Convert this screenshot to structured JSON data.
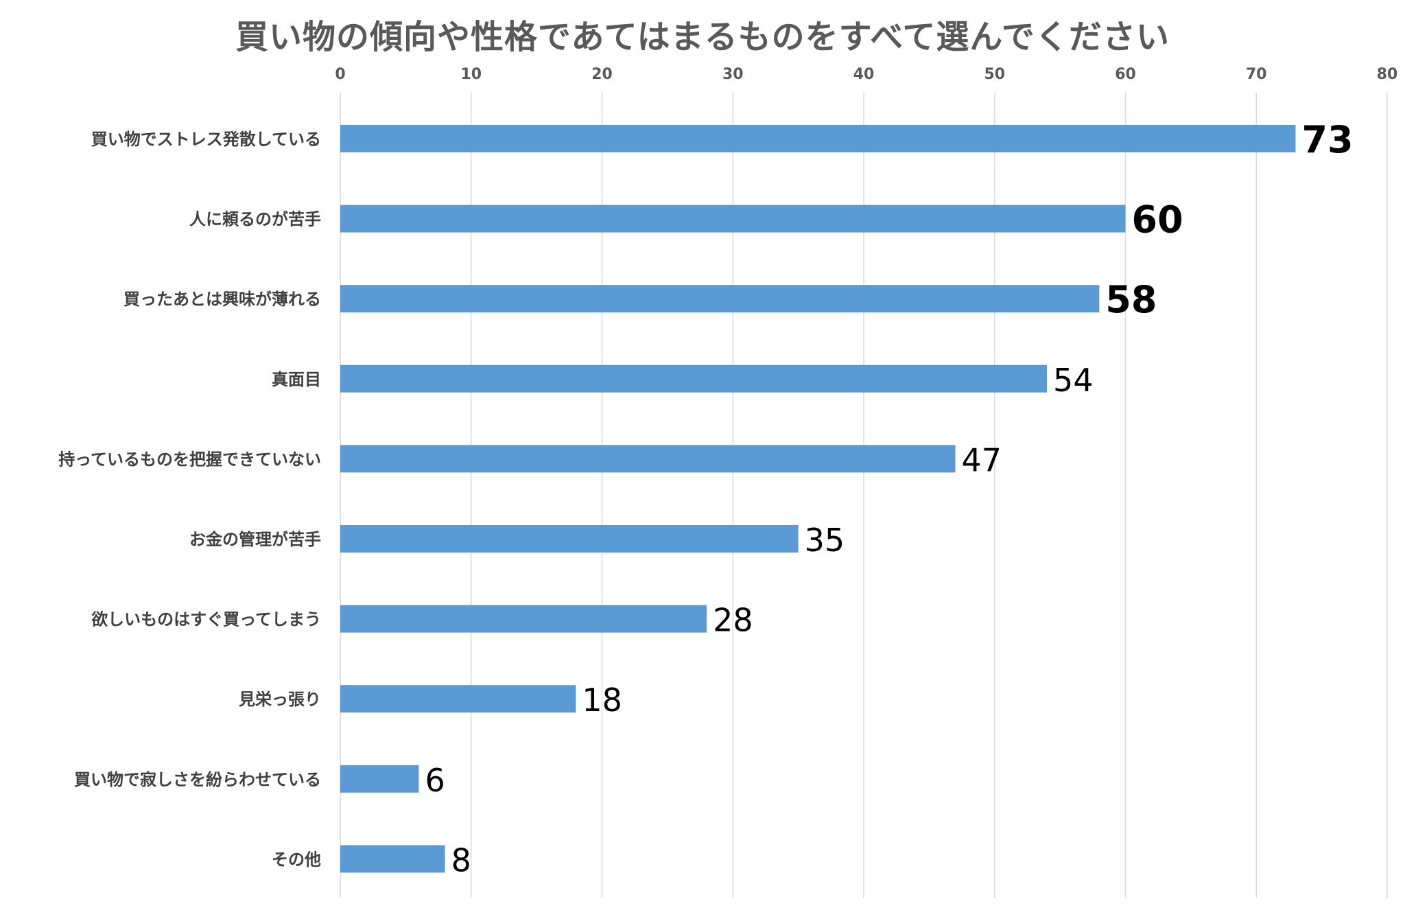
{
  "chart_data": {
    "type": "bar",
    "orientation": "horizontal",
    "title": "買い物の傾向や性格であてはまるものをすべて選んでください",
    "xlabel": "",
    "ylabel": "",
    "xlim": [
      0,
      80
    ],
    "ticks": [
      0,
      10,
      20,
      30,
      40,
      50,
      60,
      70,
      80
    ],
    "tick_position": "top",
    "grid": true,
    "legend": "none",
    "categories": [
      "買い物でストレス発散している",
      "人に頼るのが苦手",
      "買ったあとは興味が薄れる",
      "真面目",
      "持っているものを把握できていない",
      "お金の管理が苦手",
      "欲しいものはすぐ買ってしまう",
      "見栄っ張り",
      "買い物で寂しさを紛らわせている",
      "その他"
    ],
    "values": [
      73,
      60,
      58,
      54,
      47,
      35,
      28,
      18,
      6,
      8
    ],
    "highlighted": [
      true,
      true,
      true,
      false,
      false,
      false,
      false,
      false,
      false,
      false
    ],
    "bar_color": "#5b9bd5",
    "grid_color": "#d9d9d9"
  }
}
